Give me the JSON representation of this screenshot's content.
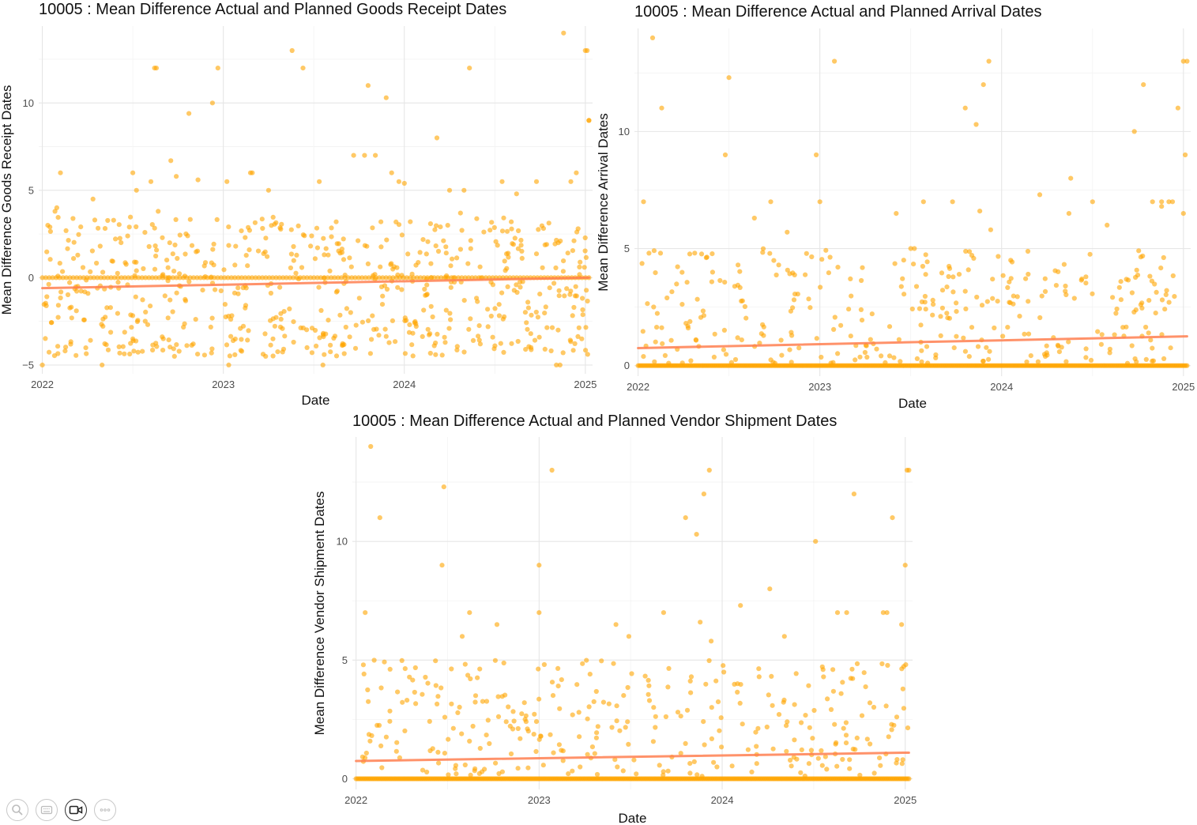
{
  "chart_data": [
    {
      "type": "scatter",
      "title": "10005 : Mean Difference Actual and Planned Goods Receipt Dates",
      "xlabel": "Date",
      "ylabel": "Mean Difference Goods Receipt Dates",
      "xlim": [
        2021.98,
        2025.04
      ],
      "ylim": [
        -5.5,
        14.4
      ],
      "x_ticks": [
        2022,
        2023,
        2024,
        2025
      ],
      "x_tick_labels": [
        "2022",
        "2023",
        "2024",
        "2025"
      ],
      "y_ticks": [
        -5,
        0,
        5,
        10
      ],
      "y_tick_labels": [
        "−5",
        "0",
        "5",
        "10"
      ],
      "point_color": "#FFA500",
      "trend_color": "#FF7F50",
      "trend": {
        "x": [
          2022.0,
          2025.02
        ],
        "y": [
          -0.6,
          0.0
        ]
      },
      "zero_cluster": {
        "x_range": [
          2022.0,
          2025.02
        ],
        "y": 0,
        "count": 160
      },
      "background_points": {
        "x_range": [
          2022.0,
          2025.02
        ],
        "y_range": [
          -4.5,
          3.5
        ],
        "count": 620,
        "seed": 17
      },
      "x": [
        2022.1,
        2022.28,
        2022.62,
        2022.63,
        2022.81,
        2022.94,
        2022.97,
        2023.38,
        2023.44,
        2023.8,
        2023.9,
        2024.18,
        2024.36,
        2024.88,
        2025.0,
        2025.01,
        2025.02,
        2025.02,
        2022.07,
        2022.03,
        2022.08,
        2022.29,
        2022.6,
        2022.71,
        2022.74,
        2022.86,
        2023.02,
        2023.15,
        2023.16,
        2023.25,
        2023.53,
        2023.72,
        2023.78,
        2023.84,
        2023.93,
        2023.97,
        2024.0,
        2024.25,
        2024.31,
        2024.33,
        2024.54,
        2024.62,
        2024.73,
        2024.92,
        2022.5,
        2022.52,
        2022.64,
        2024.24,
        2024.95,
        2024.96,
        2022.0,
        2022.33,
        2022.5,
        2022.73,
        2023.03,
        2023.55,
        2024.7,
        2024.84,
        2024.86,
        2024.98
      ],
      "y": [
        6,
        4.5,
        12,
        12,
        9.4,
        10,
        12,
        13,
        12,
        11,
        10.3,
        8,
        12,
        14,
        13,
        13,
        9,
        9,
        3.8,
        3,
        4,
        3.3,
        5.5,
        6.7,
        5.8,
        5.6,
        5.5,
        6,
        6,
        5,
        5.5,
        7,
        7,
        7,
        6,
        5.5,
        5.4,
        5,
        3.7,
        5,
        5.5,
        4.8,
        5.5,
        5.5,
        6,
        5,
        3.8,
        3,
        6,
        2.8,
        -5,
        -5,
        -3.5,
        -4.5,
        -5,
        -5,
        -4,
        -5,
        -5,
        -3.5
      ]
    },
    {
      "type": "scatter",
      "title": "10005 : Mean Difference Actual and Planned Arrival Dates",
      "xlabel": "Date",
      "ylabel": "Mean Difference Arrival Dates",
      "xlim": [
        2021.98,
        2025.04
      ],
      "ylim": [
        -0.45,
        14.4
      ],
      "x_ticks": [
        2022,
        2023,
        2024,
        2025
      ],
      "x_tick_labels": [
        "2022",
        "2023",
        "2024",
        "2025"
      ],
      "y_ticks": [
        0,
        5,
        10
      ],
      "y_tick_labels": [
        "0",
        "5",
        "10"
      ],
      "point_color": "#FFA500",
      "trend_color": "#FF7F50",
      "trend": {
        "x": [
          2022.0,
          2025.02
        ],
        "y": [
          0.75,
          1.25
        ]
      },
      "zero_cluster": {
        "x_range": [
          2022.0,
          2025.02
        ],
        "y": 0,
        "count": 420
      },
      "background_points": {
        "x_range": [
          2022.0,
          2025.02
        ],
        "y_range": [
          0.1,
          5.0
        ],
        "count": 330,
        "seed": 29
      },
      "x": [
        2022.08,
        2022.13,
        2022.5,
        2022.48,
        2022.03,
        2022.06,
        2022.64,
        2022.82,
        2023.0,
        2023.08,
        2022.98,
        2023.5,
        2023.52,
        2023.42,
        2023.8,
        2023.86,
        2023.9,
        2023.93,
        2023.94,
        2023.88,
        2024.05,
        2024.38,
        2024.73,
        2024.78,
        2024.83,
        2025.0,
        2025.02,
        2025.01,
        2024.97,
        2024.94,
        2024.92,
        2024.88,
        2025.0,
        2024.88,
        2024.58,
        2024.5,
        2024.21,
        2024.37,
        2023.73,
        2023.57,
        2022.55,
        2022.73
      ],
      "y": [
        14,
        11,
        12.3,
        9,
        7,
        4.8,
        6.3,
        5.7,
        7,
        13,
        9,
        5,
        5,
        6.5,
        11,
        10.3,
        12,
        13,
        5.8,
        6.6,
        4.5,
        8,
        10,
        12,
        7,
        13,
        13,
        9,
        11,
        7,
        7,
        6.8,
        6.5,
        7,
        6,
        7,
        7.3,
        6.5,
        7,
        7,
        4.3,
        7
      ]
    },
    {
      "type": "scatter",
      "title": "10005 : Mean Difference Actual and Planned Vendor Shipment Dates",
      "xlabel": "Date",
      "ylabel": "Mean Difference Vendor Shipment Dates",
      "xlim": [
        2021.98,
        2025.04
      ],
      "ylim": [
        -0.45,
        14.4
      ],
      "x_ticks": [
        2022,
        2023,
        2024,
        2025
      ],
      "x_tick_labels": [
        "2022",
        "2023",
        "2024",
        "2025"
      ],
      "y_ticks": [
        0,
        5,
        10
      ],
      "y_tick_labels": [
        "0",
        "5",
        "10"
      ],
      "point_color": "#FFA500",
      "trend_color": "#FF7F50",
      "trend": {
        "x": [
          2022.0,
          2025.02
        ],
        "y": [
          0.75,
          1.1
        ]
      },
      "zero_cluster": {
        "x_range": [
          2022.0,
          2025.02
        ],
        "y": 0,
        "count": 420
      },
      "background_points": {
        "x_range": [
          2022.0,
          2025.02
        ],
        "y_range": [
          0.1,
          5.0
        ],
        "count": 330,
        "seed": 41
      },
      "x": [
        2022.08,
        2022.13,
        2022.48,
        2022.47,
        2022.05,
        2022.04,
        2022.62,
        2022.77,
        2023.0,
        2023.07,
        2023.0,
        2023.42,
        2023.49,
        2023.68,
        2023.8,
        2023.86,
        2023.9,
        2023.93,
        2023.94,
        2023.88,
        2024.1,
        2024.26,
        2024.34,
        2024.51,
        2024.68,
        2024.72,
        2024.9,
        2024.93,
        2025.0,
        2025.01,
        2024.98,
        2025.02,
        2024.88,
        2024.63,
        2022.58
      ],
      "y": [
        14,
        11,
        12.3,
        9,
        7,
        4.8,
        7,
        6.5,
        9,
        13,
        7,
        6.5,
        6,
        7,
        11,
        10.3,
        12,
        13,
        5.8,
        6.6,
        7.3,
        8,
        6,
        10,
        7,
        12,
        7,
        11,
        9,
        13,
        6.5,
        13,
        7,
        7,
        6
      ]
    }
  ],
  "toolbar": {
    "icons": [
      "search-icon",
      "keyboard-icon",
      "video-icon",
      "more-icon"
    ]
  }
}
